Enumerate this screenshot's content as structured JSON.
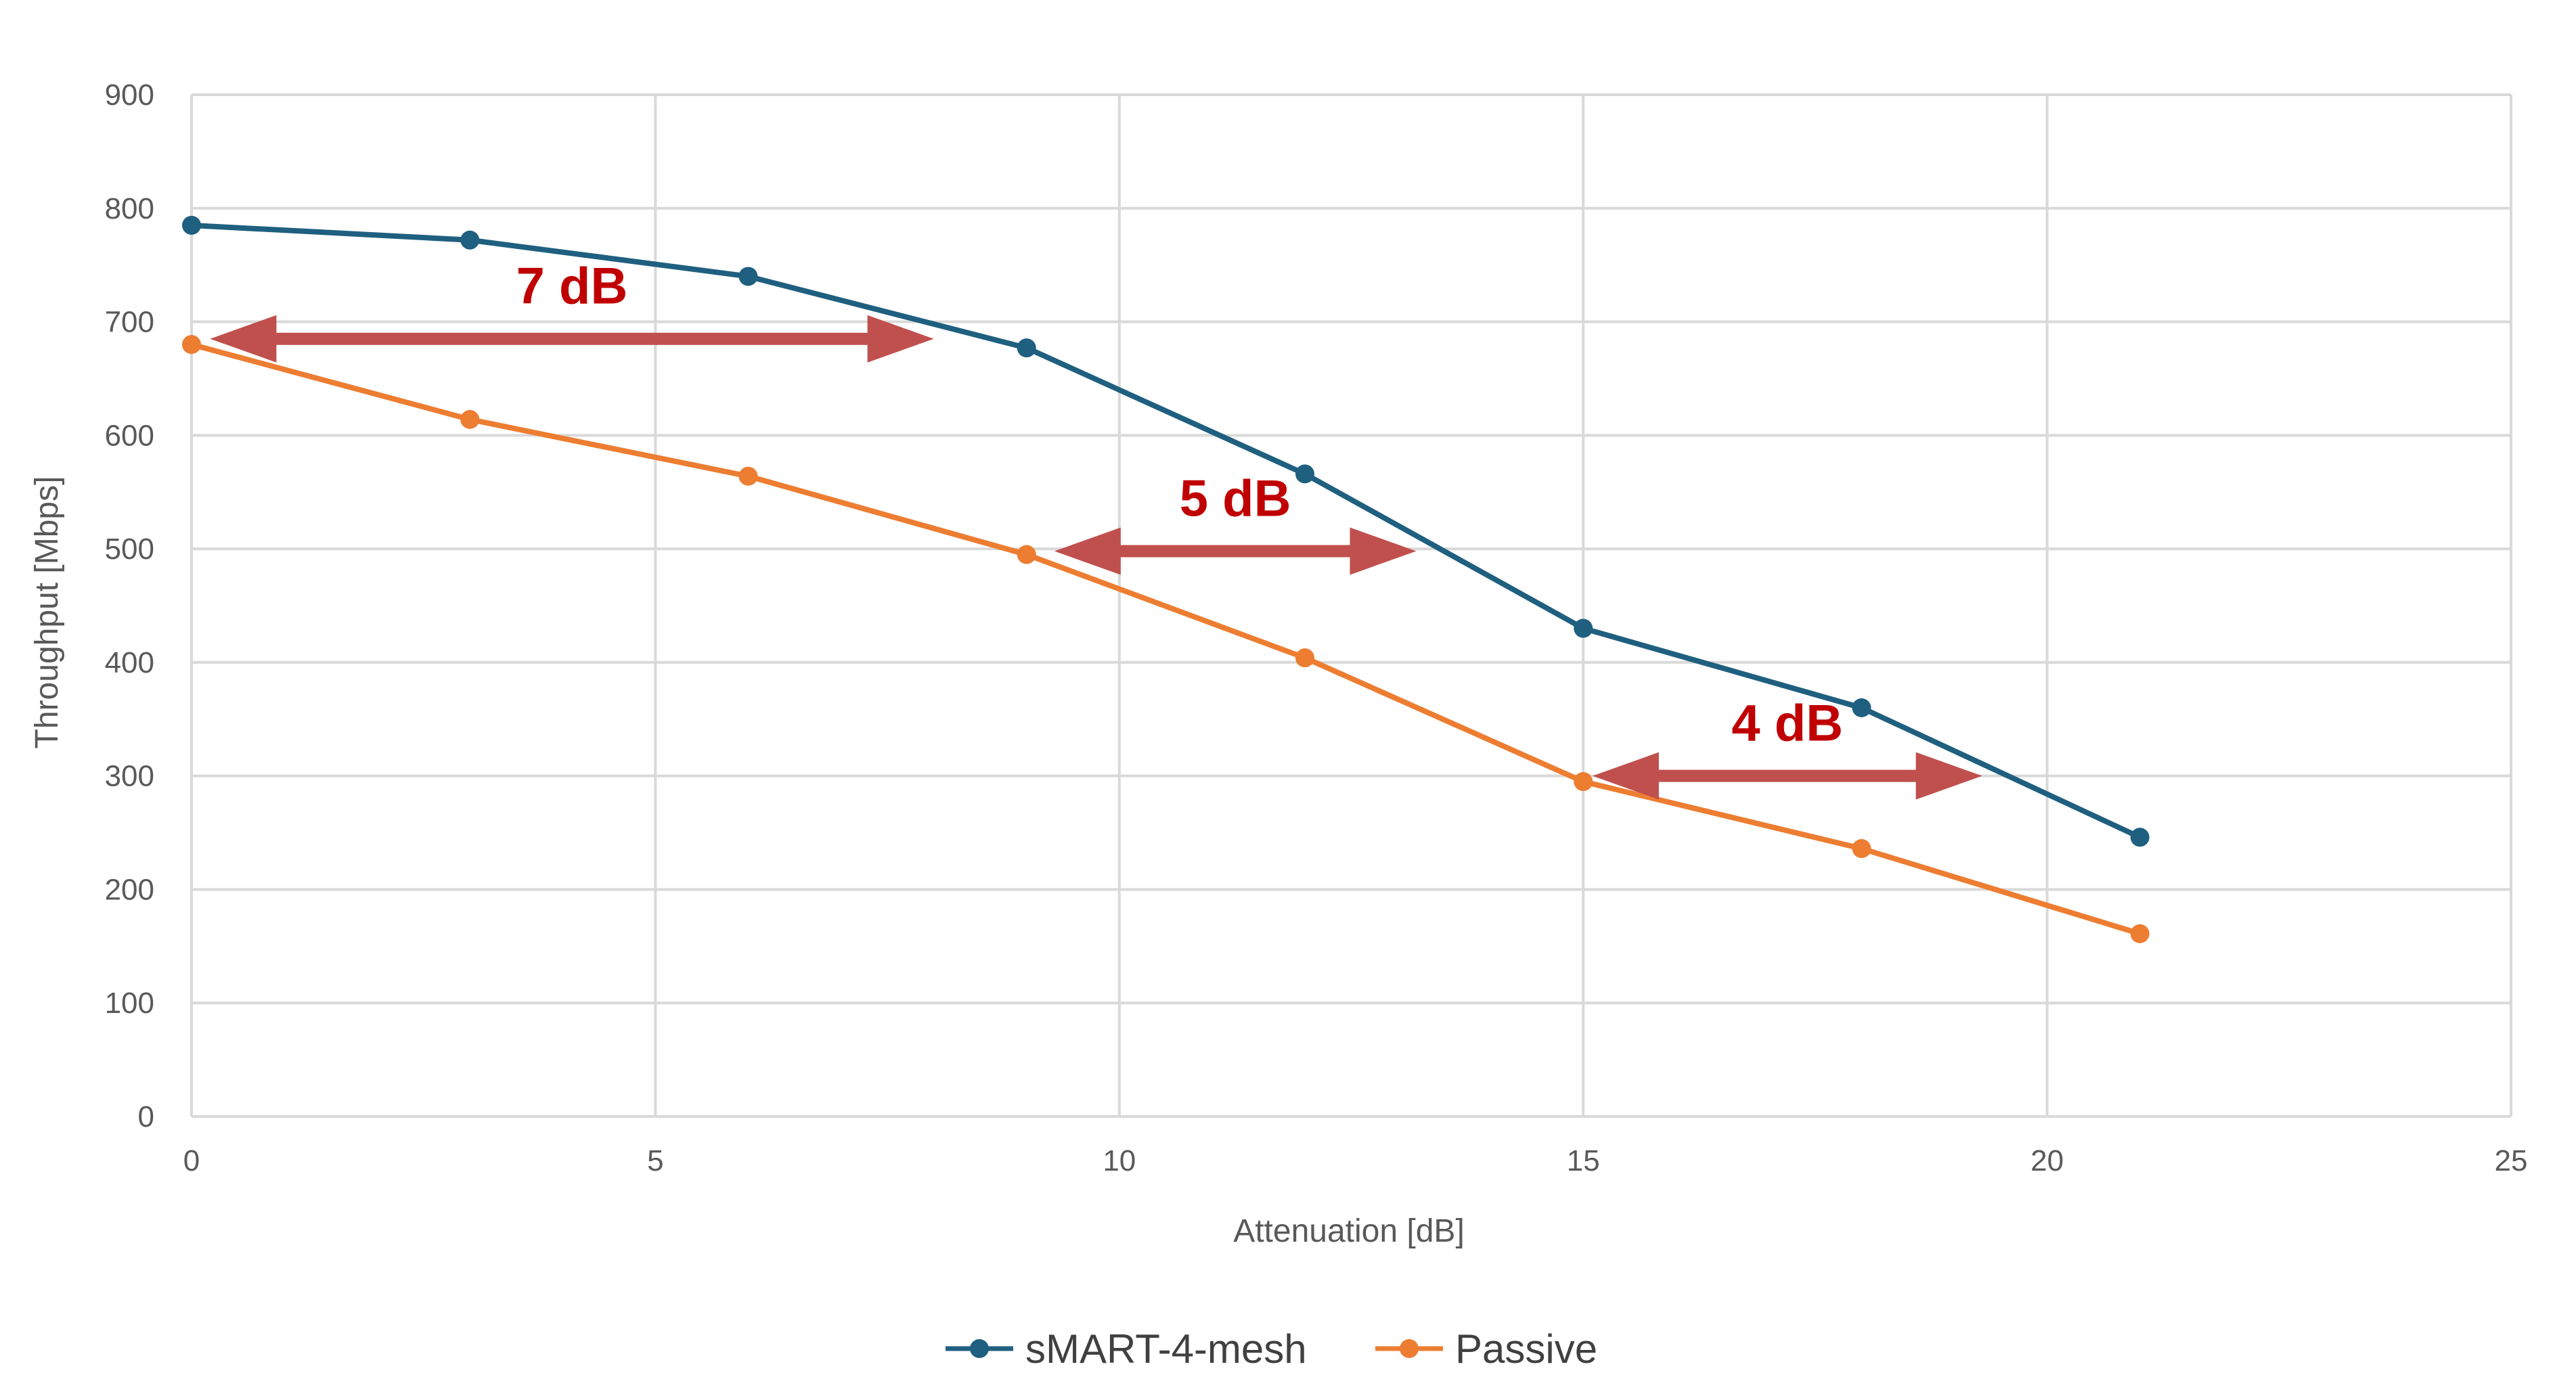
{
  "chart_data": {
    "type": "line",
    "title": "",
    "xlabel": "Attenuation [dB]",
    "ylabel": "Throughput [Mbps]",
    "xlim": [
      0,
      25
    ],
    "ylim": [
      0,
      900
    ],
    "xticks": [
      0,
      5,
      10,
      15,
      20,
      25
    ],
    "yticks": [
      0,
      100,
      200,
      300,
      400,
      500,
      600,
      700,
      800,
      900
    ],
    "grid": true,
    "legend_position": "bottom",
    "series": [
      {
        "name": "sMART-4-mesh",
        "color": "#1F5F7F",
        "x": [
          0,
          3,
          6,
          9,
          12,
          15,
          18,
          21
        ],
        "y": [
          785,
          772,
          740,
          677,
          566,
          430,
          360,
          246
        ]
      },
      {
        "name": "Passive",
        "color": "#ED7D31",
        "x": [
          0,
          3,
          6,
          9,
          12,
          15,
          18,
          21
        ],
        "y": [
          680,
          614,
          564,
          495,
          404,
          295,
          236,
          161
        ]
      }
    ],
    "annotations": [
      {
        "text": "7 dB",
        "x_start": 0.2,
        "x_end": 8.0,
        "y": 685,
        "color": "#C0504D",
        "text_color": "#C00000"
      },
      {
        "text": "5 dB",
        "x_start": 9.3,
        "x_end": 13.2,
        "y": 498,
        "color": "#C0504D",
        "text_color": "#C00000"
      },
      {
        "text": "4 dB",
        "x_start": 15.1,
        "x_end": 19.3,
        "y": 300,
        "color": "#C0504D",
        "text_color": "#C00000"
      }
    ]
  }
}
